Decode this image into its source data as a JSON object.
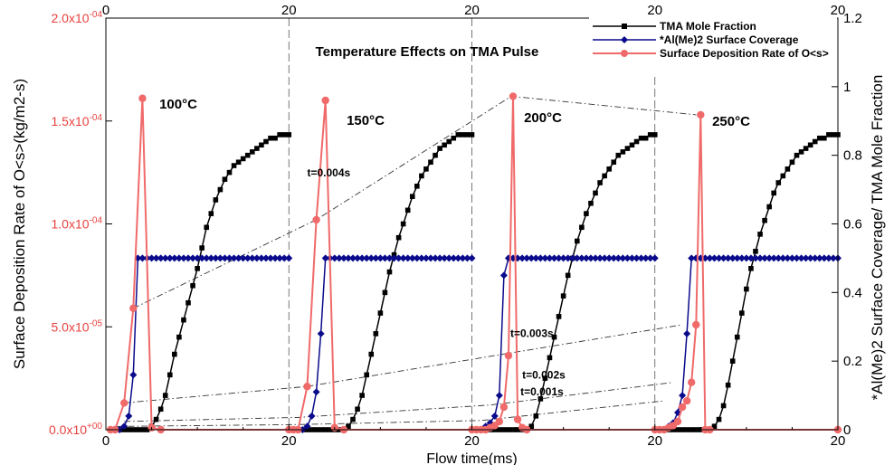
{
  "chart_data": {
    "type": "line",
    "title": "Temperature Effects on TMA Pulse",
    "xlabel": "Flow time(ms)",
    "ylabel_left": "Surface Deposition Rate of O<s>(kg/m2-s)",
    "ylabel_right": "*Al(Me)2 Surface Coverage/ TMA Mole Fraction",
    "ylim_left": [
      0,
      0.0002
    ],
    "ylim_right": [
      0,
      1.2
    ],
    "panels": [
      {
        "label": "100°C",
        "xlim": [
          0,
          20
        ]
      },
      {
        "label": "150°C",
        "xlim": [
          0,
          20
        ]
      },
      {
        "label": "200°C",
        "xlim": [
          0,
          20
        ]
      },
      {
        "label": "250°C",
        "xlim": [
          0,
          20
        ]
      }
    ],
    "x_tick_labels": [
      "0",
      "20"
    ],
    "y_left_tick_labels": [
      "0.0x10+00",
      "5.0x10-05",
      "1.0x10-04",
      "1.5x10-04",
      "2.0x10-04"
    ],
    "y_right_tick_labels": [
      "0",
      "0.2",
      "0.4",
      "0.6",
      "0.8",
      "1",
      "1.2"
    ],
    "legend": {
      "position": "top-right",
      "entries": [
        "TMA Mole Fraction",
        "*Al(Me)2 Surface Coverage",
        "Surface Deposition Rate of O<s>"
      ]
    },
    "series": [
      {
        "name": "TMA Mole Fraction",
        "axis": "right",
        "color": "#000000",
        "marker": "square",
        "panels": [
          {
            "x": [
              0.5,
              1,
              1.5,
              2,
              2.5,
              3,
              3.5,
              4,
              4.5,
              5,
              5.5,
              6,
              6.5,
              7,
              7.5,
              8,
              8.5,
              9,
              9.5,
              10,
              10.5,
              11,
              11.5,
              12,
              12.5,
              13,
              13.5,
              14,
              14.5,
              15,
              15.5,
              16,
              16.5,
              17,
              17.5,
              18,
              18.5,
              19,
              19.5,
              20
            ],
            "y": [
              0,
              0,
              0,
              0,
              0,
              0,
              0,
              0,
              0,
              0.01,
              0.03,
              0.06,
              0.1,
              0.16,
              0.22,
              0.27,
              0.32,
              0.37,
              0.42,
              0.47,
              0.53,
              0.59,
              0.63,
              0.67,
              0.7,
              0.73,
              0.75,
              0.77,
              0.78,
              0.79,
              0.8,
              0.81,
              0.82,
              0.83,
              0.84,
              0.85,
              0.85,
              0.86,
              0.86,
              0.86
            ]
          },
          {
            "x": [
              0.5,
              1,
              1.5,
              2,
              2.5,
              3,
              3.5,
              4,
              4.5,
              5,
              5.5,
              6,
              6.5,
              7,
              7.5,
              8,
              8.5,
              9,
              9.5,
              10,
              10.5,
              11,
              11.5,
              12,
              12.5,
              13,
              13.5,
              14,
              14.5,
              15,
              15.5,
              16,
              16.5,
              17,
              17.5,
              18,
              18.5,
              19,
              19.5,
              20
            ],
            "y": [
              0,
              0,
              0,
              0,
              0,
              0,
              0,
              0,
              0,
              0,
              0,
              0,
              0.01,
              0.03,
              0.06,
              0.1,
              0.16,
              0.22,
              0.28,
              0.34,
              0.4,
              0.46,
              0.51,
              0.56,
              0.6,
              0.64,
              0.68,
              0.71,
              0.74,
              0.76,
              0.78,
              0.8,
              0.82,
              0.83,
              0.84,
              0.85,
              0.86,
              0.86,
              0.86,
              0.86
            ]
          },
          {
            "x": [
              0.5,
              1,
              1.5,
              2,
              2.5,
              3,
              3.5,
              4,
              4.5,
              5,
              5.5,
              6,
              6.5,
              7,
              7.5,
              8,
              8.5,
              9,
              9.5,
              10,
              10.5,
              11,
              11.5,
              12,
              12.5,
              13,
              13.5,
              14,
              14.5,
              15,
              15.5,
              16,
              16.5,
              17,
              17.5,
              18,
              18.5,
              19,
              19.5,
              20
            ],
            "y": [
              0,
              0,
              0,
              0,
              0,
              0,
              0,
              0,
              0,
              0,
              0,
              0,
              0.01,
              0.04,
              0.09,
              0.15,
              0.21,
              0.27,
              0.33,
              0.39,
              0.45,
              0.5,
              0.55,
              0.59,
              0.63,
              0.66,
              0.69,
              0.72,
              0.74,
              0.76,
              0.78,
              0.8,
              0.81,
              0.82,
              0.83,
              0.84,
              0.85,
              0.85,
              0.86,
              0.86
            ]
          },
          {
            "x": [
              0.5,
              1,
              1.5,
              2,
              2.5,
              3,
              3.5,
              4,
              4.5,
              5,
              5.5,
              6,
              6.5,
              7,
              7.5,
              8,
              8.5,
              9,
              9.5,
              10,
              10.5,
              11,
              11.5,
              12,
              12.5,
              13,
              13.5,
              14,
              14.5,
              15,
              15.5,
              16,
              16.5,
              17,
              17.5,
              18,
              18.5,
              19,
              19.5,
              20
            ],
            "y": [
              0,
              0,
              0,
              0,
              0,
              0,
              0,
              0,
              0,
              0,
              0,
              0,
              0.01,
              0.03,
              0.07,
              0.13,
              0.2,
              0.27,
              0.34,
              0.41,
              0.47,
              0.52,
              0.57,
              0.61,
              0.65,
              0.69,
              0.72,
              0.74,
              0.76,
              0.78,
              0.8,
              0.81,
              0.82,
              0.83,
              0.84,
              0.85,
              0.85,
              0.86,
              0.86,
              0.86
            ]
          }
        ]
      },
      {
        "name": "*Al(Me)2 Surface Coverage",
        "axis": "right",
        "color": "#0a0a8c",
        "marker": "diamond",
        "panels": [
          {
            "x": [
              0.5,
              1,
              1.5,
              2,
              2.5,
              3,
              3.5,
              4,
              4.5,
              5,
              5.5,
              6,
              6.5,
              7,
              7.5,
              8,
              8.5,
              9,
              9.5,
              10,
              10.5,
              11,
              11.5,
              12,
              12.5,
              13,
              13.5,
              14,
              14.5,
              15,
              15.5,
              16,
              16.5,
              17,
              17.5,
              18,
              18.5,
              19,
              19.5,
              20
            ],
            "y": [
              0,
              0,
              0,
              0.01,
              0.04,
              0.16,
              0.5,
              0.5,
              0.5,
              0.5,
              0.5,
              0.5,
              0.5,
              0.5,
              0.5,
              0.5,
              0.5,
              0.5,
              0.5,
              0.5,
              0.5,
              0.5,
              0.5,
              0.5,
              0.5,
              0.5,
              0.5,
              0.5,
              0.5,
              0.5,
              0.5,
              0.5,
              0.5,
              0.5,
              0.5,
              0.5,
              0.5,
              0.5,
              0.5,
              0.5
            ]
          },
          {
            "x": [
              0.5,
              1,
              1.5,
              2,
              2.5,
              3,
              3.5,
              4,
              4.5,
              5,
              5.5,
              6,
              6.5,
              7,
              7.5,
              8,
              8.5,
              9,
              9.5,
              10,
              10.5,
              11,
              11.5,
              12,
              12.5,
              13,
              13.5,
              14,
              14.5,
              15,
              15.5,
              16,
              16.5,
              17,
              17.5,
              18,
              18.5,
              19,
              19.5,
              20
            ],
            "y": [
              0,
              0,
              0,
              0.01,
              0.04,
              0.11,
              0.28,
              0.5,
              0.5,
              0.5,
              0.5,
              0.5,
              0.5,
              0.5,
              0.5,
              0.5,
              0.5,
              0.5,
              0.5,
              0.5,
              0.5,
              0.5,
              0.5,
              0.5,
              0.5,
              0.5,
              0.5,
              0.5,
              0.5,
              0.5,
              0.5,
              0.5,
              0.5,
              0.5,
              0.5,
              0.5,
              0.5,
              0.5,
              0.5,
              0.5
            ]
          },
          {
            "x": [
              0.5,
              1,
              1.5,
              2,
              2.5,
              3,
              3.5,
              4,
              4.5,
              5,
              5.5,
              6,
              6.5,
              7,
              7.5,
              8,
              8.5,
              9,
              9.5,
              10,
              10.5,
              11,
              11.5,
              12,
              12.5,
              13,
              13.5,
              14,
              14.5,
              15,
              15.5,
              16,
              16.5,
              17,
              17.5,
              18,
              18.5,
              19,
              19.5,
              20
            ],
            "y": [
              0,
              0,
              0.01,
              0.02,
              0.04,
              0.1,
              0.45,
              0.5,
              0.5,
              0.5,
              0.5,
              0.5,
              0.5,
              0.5,
              0.5,
              0.5,
              0.5,
              0.5,
              0.5,
              0.5,
              0.5,
              0.5,
              0.5,
              0.5,
              0.5,
              0.5,
              0.5,
              0.5,
              0.5,
              0.5,
              0.5,
              0.5,
              0.5,
              0.5,
              0.5,
              0.5,
              0.5,
              0.5,
              0.5,
              0.5
            ]
          },
          {
            "x": [
              0.5,
              1,
              1.5,
              2,
              2.5,
              3,
              3.5,
              4,
              4.5,
              5,
              5.5,
              6,
              6.5,
              7,
              7.5,
              8,
              8.5,
              9,
              9.5,
              10,
              10.5,
              11,
              11.5,
              12,
              12.5,
              13,
              13.5,
              14,
              14.5,
              15,
              15.5,
              16,
              16.5,
              17,
              17.5,
              18,
              18.5,
              19,
              19.5,
              20
            ],
            "y": [
              0,
              0,
              0.01,
              0.02,
              0.05,
              0.1,
              0.28,
              0.5,
              0.5,
              0.5,
              0.5,
              0.5,
              0.5,
              0.5,
              0.5,
              0.5,
              0.5,
              0.5,
              0.5,
              0.5,
              0.5,
              0.5,
              0.5,
              0.5,
              0.5,
              0.5,
              0.5,
              0.5,
              0.5,
              0.5,
              0.5,
              0.5,
              0.5,
              0.5,
              0.5,
              0.5,
              0.5,
              0.5,
              0.5,
              0.5
            ]
          }
        ]
      },
      {
        "name": "Surface Deposition Rate of O<s>",
        "axis": "left",
        "color": "#f06a6a",
        "marker": "circle",
        "panels": [
          {
            "x": [
              0.5,
              1,
              2,
              3,
              4,
              5,
              6,
              20
            ],
            "y": [
              0,
              0,
              1.3e-05,
              5.9e-05,
              0.000161,
              1e-06,
              0,
              0
            ]
          },
          {
            "x": [
              0.5,
              1,
              2,
              3,
              4,
              5,
              6,
              20
            ],
            "y": [
              0,
              0,
              2.1e-05,
              0.000102,
              0.00016,
              1e-06,
              0,
              0
            ]
          },
          {
            "x": [
              0.5,
              1,
              1.5,
              2,
              2.5,
              3,
              3.5,
              4,
              4.5,
              5,
              5.5,
              6,
              20
            ],
            "y": [
              0,
              0,
              0,
              1e-06,
              2e-06,
              4e-06,
              1.1e-05,
              3.6e-05,
              0.000162,
              5e-06,
              1e-06,
              0,
              0
            ]
          },
          {
            "x": [
              0.5,
              1,
              1.5,
              2,
              2.5,
              3,
              3.5,
              4,
              4.5,
              5,
              5.5,
              6,
              20
            ],
            "y": [
              0,
              0,
              1e-06,
              2e-06,
              4e-06,
              1.1e-05,
              1.4e-05,
              2.3e-05,
              5.1e-05,
              0.000153,
              0,
              0,
              0
            ]
          }
        ]
      }
    ],
    "annotations": [
      {
        "label": "t=0.004s",
        "panel": 1,
        "x": 2.0,
        "y": 0.000123
      },
      {
        "label": "t=0.003s",
        "panel": 2,
        "x": 4.2,
        "y": 4.5e-05
      },
      {
        "label": "t=0.002s",
        "panel": 2,
        "x": 5.5,
        "y": 2.48e-05
      },
      {
        "label": "t=0.001s",
        "panel": 2,
        "x": 5.3,
        "y": 1.67e-05
      }
    ],
    "trend_lines": [
      {
        "name": "t=0.004s",
        "points": [
          [
            0,
            3,
            5.9e-05
          ],
          [
            1,
            3,
            0.000102
          ],
          [
            2,
            4.3,
            0.000162
          ],
          [
            3,
            4.5,
            0.000153
          ]
        ]
      },
      {
        "name": "t=0.003s",
        "points": [
          [
            0,
            2,
            1.3e-05
          ],
          [
            1,
            2,
            2.1e-05
          ],
          [
            2,
            3,
            3.64e-05
          ],
          [
            3,
            3,
            5.1e-05
          ]
        ]
      },
      {
        "name": "t=0.002s",
        "points": [
          [
            0,
            2,
            4e-06
          ],
          [
            1,
            1,
            6e-06
          ],
          [
            2,
            2,
            1.2e-05
          ],
          [
            3,
            2,
            2.3e-05
          ]
        ]
      },
      {
        "name": "t=0.001s",
        "points": [
          [
            0,
            1,
            1.6e-06
          ],
          [
            1,
            1,
            2.5e-06
          ],
          [
            2,
            1,
            4.5e-06
          ],
          [
            3,
            1,
            1.4e-05
          ]
        ]
      }
    ]
  }
}
